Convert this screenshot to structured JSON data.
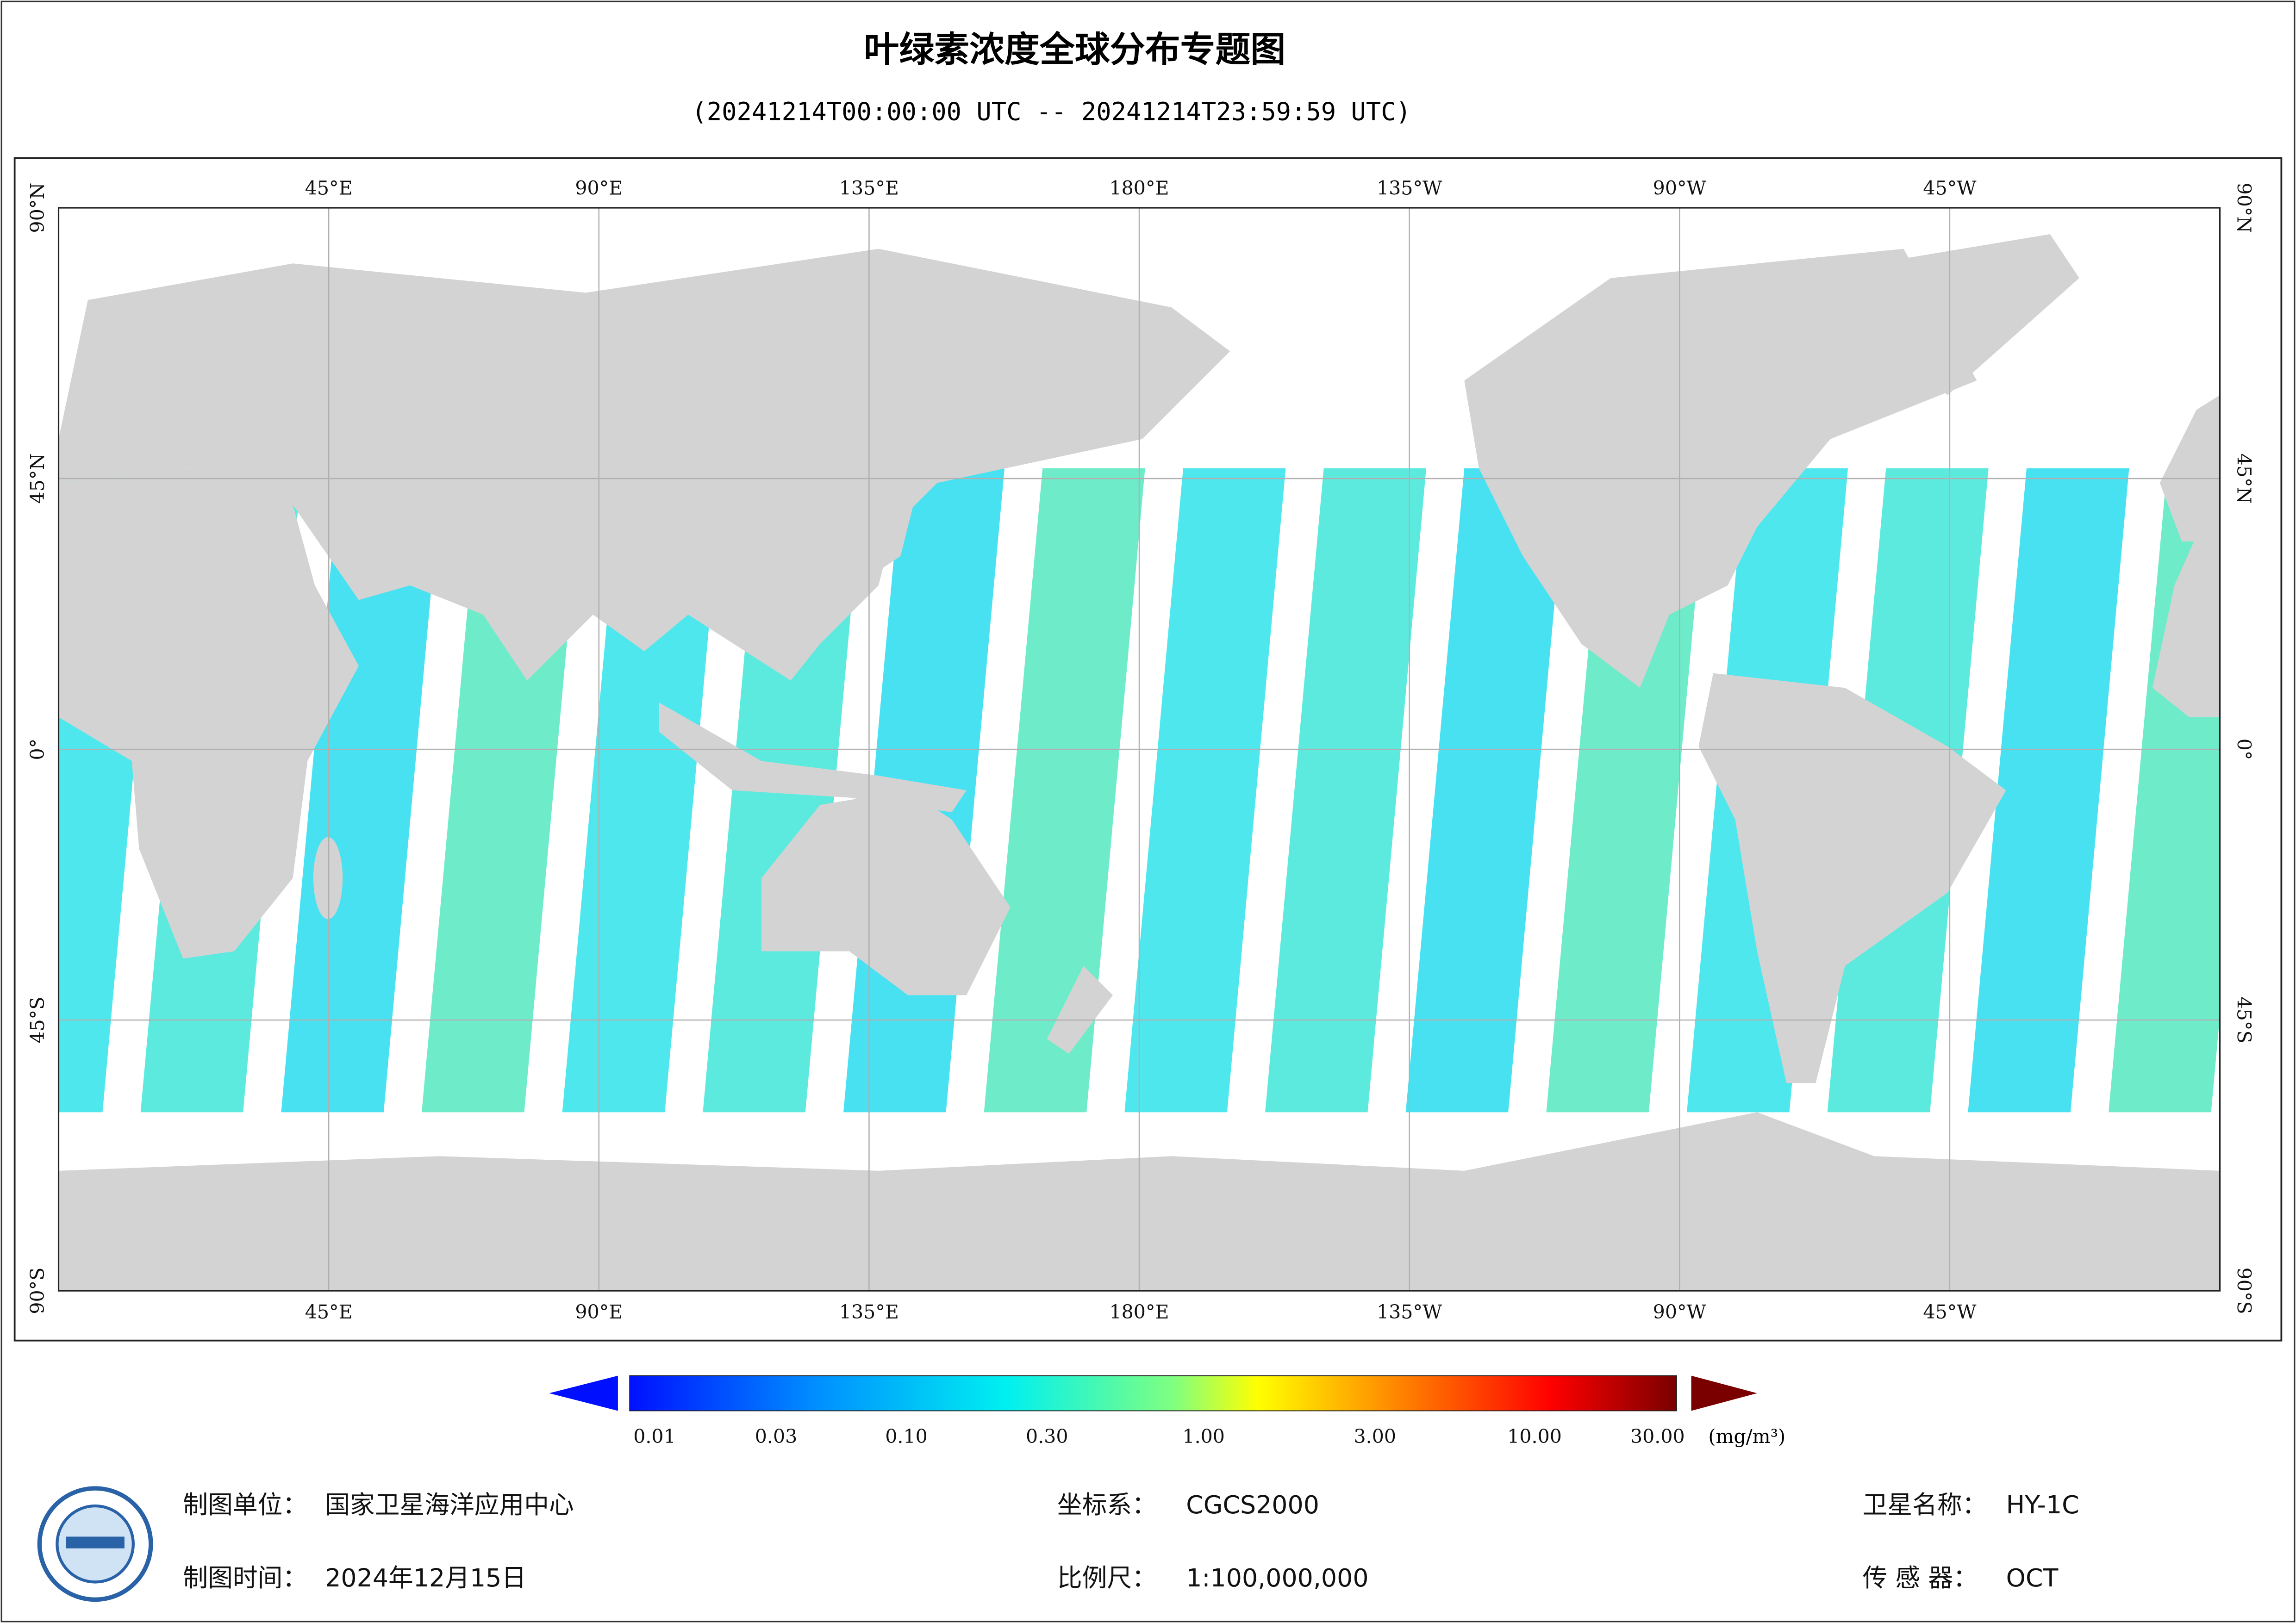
{
  "title": "叶绿素浓度全球分布专题图",
  "subtitle": "(20241214T00:00:00 UTC -- 20241214T23:59:59 UTC)",
  "map": {
    "lon_labels": [
      "45°E",
      "90°E",
      "135°E",
      "180°E",
      "135°W",
      "90°W",
      "45°W"
    ],
    "lat_labels": [
      "90°N",
      "45°N",
      "0°",
      "45°S",
      "90°S"
    ]
  },
  "colorbar": {
    "ticks": [
      "0.01",
      "0.03",
      "0.10",
      "0.30",
      "1.00",
      "3.00",
      "10.00",
      "30.00"
    ],
    "unit": "(mg/m³)"
  },
  "footer": {
    "producer_label": "制图单位：",
    "producer": "国家卫星海洋应用中心",
    "date_label": "制图时间：",
    "date": "2024年12月15日",
    "crs_label": "坐标系：",
    "crs": "CGCS2000",
    "scale_label": "比例尺：",
    "scale": "1:100,000,000",
    "satellite_label": "卫星名称：",
    "satellite": "HY-1C",
    "sensor_label": "传 感 器：",
    "sensor": "OCT"
  }
}
